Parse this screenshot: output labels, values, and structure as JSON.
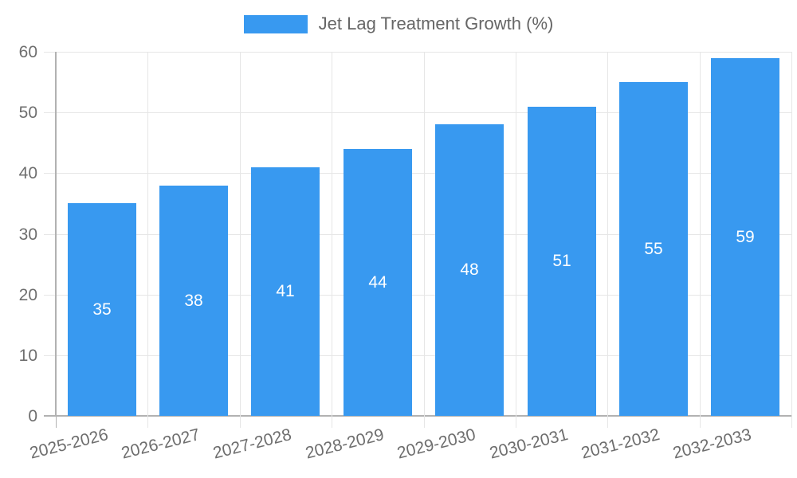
{
  "legend": {
    "label": "Jet Lag Treatment Growth (%)"
  },
  "chart_data": {
    "type": "bar",
    "title": "",
    "legend_label": "Jet Lag Treatment Growth (%)",
    "legend_position": "top",
    "categories": [
      "2025-2026",
      "2026-2027",
      "2027-2028",
      "2028-2029",
      "2029-2030",
      "2030-2031",
      "2031-2032",
      "2032-2033"
    ],
    "values": [
      35,
      38,
      41,
      44,
      48,
      51,
      55,
      59
    ],
    "xlabel": "",
    "ylabel": "",
    "ylim": [
      0,
      60
    ],
    "yticks": [
      0,
      10,
      20,
      30,
      40,
      50,
      60
    ],
    "grid": true,
    "value_labels": "centered inside bars",
    "colors": {
      "bar": "#3899f0",
      "value_label": "#ffffff",
      "grid": "#e6e6e6",
      "axis": "#b2b2b2",
      "tick_text": "#6e6e6e",
      "legend_text": "#666666"
    }
  }
}
